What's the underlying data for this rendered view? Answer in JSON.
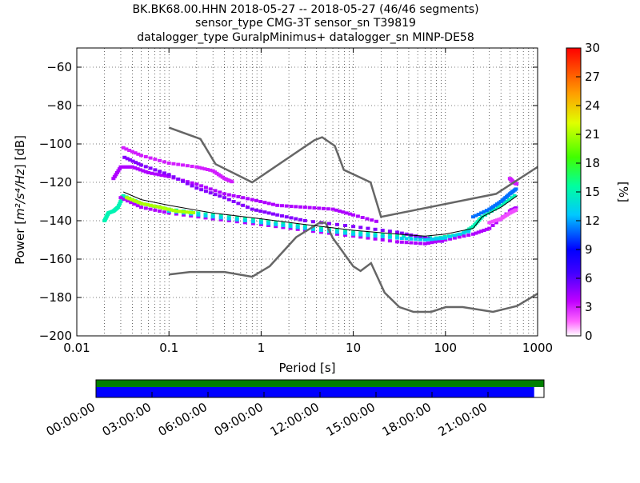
{
  "chart_data": {
    "type": "heatmap",
    "title_lines": [
      "BK.BK68.00.HHN   2018-05-27 -- 2018-05-27  (46/46 segments)",
      "sensor_type CMG-3T sensor_sn T39819",
      "datalogger_type GuralpMinimus+ datalogger_sn MINP-DE58"
    ],
    "xlabel": "Period [s]",
    "ylabel_prefix": "Power [",
    "ylabel_math": "m²/s⁴/Hz",
    "ylabel_suffix": "] [dB]",
    "x_scale": "log",
    "xlim": [
      0.01,
      1000
    ],
    "ylim": [
      -200,
      -50
    ],
    "x_ticks": [
      {
        "v": 0.01,
        "label": "0.01"
      },
      {
        "v": 0.1,
        "label": "0.1"
      },
      {
        "v": 1,
        "label": "1"
      },
      {
        "v": 10,
        "label": "10"
      },
      {
        "v": 100,
        "label": "100"
      },
      {
        "v": 1000,
        "label": "1000"
      }
    ],
    "y_ticks": [
      {
        "v": -60,
        "label": "−60"
      },
      {
        "v": -80,
        "label": "−80"
      },
      {
        "v": -100,
        "label": "−100"
      },
      {
        "v": -120,
        "label": "−120"
      },
      {
        "v": -140,
        "label": "−140"
      },
      {
        "v": -160,
        "label": "−160"
      },
      {
        "v": -180,
        "label": "−180"
      },
      {
        "v": -200,
        "label": "−200"
      }
    ],
    "grid": true,
    "colorbar": {
      "label": "[%]",
      "range": [
        0,
        30
      ],
      "ticks": [
        {
          "v": 0,
          "label": "0"
        },
        {
          "v": 3,
          "label": "3"
        },
        {
          "v": 6,
          "label": "6"
        },
        {
          "v": 9,
          "label": "9"
        },
        {
          "v": 12,
          "label": "12"
        },
        {
          "v": 15,
          "label": "15"
        },
        {
          "v": 18,
          "label": "18"
        },
        {
          "v": 21,
          "label": "21"
        },
        {
          "v": 24,
          "label": "24"
        },
        {
          "v": 27,
          "label": "27"
        },
        {
          "v": 30,
          "label": "30"
        }
      ]
    },
    "high_noise_model": [
      [
        0.1,
        -91.5
      ],
      [
        0.22,
        -97.4
      ],
      [
        0.32,
        -110.5
      ],
      [
        0.8,
        -120
      ],
      [
        3.8,
        -98
      ],
      [
        4.6,
        -96.5
      ],
      [
        6.3,
        -101
      ],
      [
        7.9,
        -113.5
      ],
      [
        15.4,
        -120
      ],
      [
        20,
        -138
      ],
      [
        354.8,
        -126
      ],
      [
        1000,
        -112
      ]
    ],
    "low_noise_model": [
      [
        0.1,
        -168
      ],
      [
        0.17,
        -166.7
      ],
      [
        0.4,
        -166.7
      ],
      [
        0.8,
        -169.2
      ],
      [
        1.24,
        -163.7
      ],
      [
        2.4,
        -148.6
      ],
      [
        4.3,
        -141.1
      ],
      [
        5,
        -141.1
      ],
      [
        6,
        -149
      ],
      [
        10,
        -163.8
      ],
      [
        12,
        -166.2
      ],
      [
        15.6,
        -162.1
      ],
      [
        21.9,
        -177.5
      ],
      [
        31.6,
        -185
      ],
      [
        45,
        -187.5
      ],
      [
        70,
        -187.5
      ],
      [
        101,
        -185
      ],
      [
        154,
        -185
      ],
      [
        328,
        -187.5
      ],
      [
        600,
        -184.4
      ],
      [
        1000,
        -178
      ]
    ],
    "mode_line": [
      [
        0.032,
        -125
      ],
      [
        0.05,
        -129
      ],
      [
        0.1,
        -132
      ],
      [
        0.3,
        -136
      ],
      [
        1,
        -139
      ],
      [
        3,
        -142
      ],
      [
        10,
        -145
      ],
      [
        30,
        -147
      ],
      [
        60,
        -148
      ],
      [
        100,
        -147
      ],
      [
        200,
        -144
      ],
      [
        250,
        -138
      ],
      [
        400,
        -133
      ],
      [
        600,
        -127
      ]
    ],
    "density_bands": [
      {
        "level": 15,
        "points": [
          [
            0.02,
            -140
          ],
          [
            0.022,
            -136
          ],
          [
            0.025,
            -135
          ],
          [
            0.028,
            -133
          ],
          [
            0.032,
            -127
          ],
          [
            0.05,
            -131
          ],
          [
            0.1,
            -134
          ],
          [
            0.3,
            -137
          ],
          [
            1,
            -140
          ],
          [
            3,
            -143
          ],
          [
            10,
            -146
          ],
          [
            30,
            -148
          ],
          [
            80,
            -149
          ],
          [
            150,
            -147
          ],
          [
            200,
            -143
          ],
          [
            250,
            -138
          ],
          [
            400,
            -132
          ],
          [
            600,
            -126
          ]
        ]
      },
      {
        "level": 3,
        "points": [
          [
            0.032,
            -102
          ],
          [
            0.05,
            -106
          ],
          [
            0.1,
            -110
          ],
          [
            0.2,
            -112
          ],
          [
            0.3,
            -114
          ],
          [
            0.4,
            -118
          ],
          [
            0.5,
            -120
          ]
        ]
      },
      {
        "level": 4,
        "points": [
          [
            0.025,
            -118
          ],
          [
            0.03,
            -112
          ],
          [
            0.04,
            -112
          ],
          [
            0.06,
            -115
          ],
          [
            0.1,
            -117
          ],
          [
            0.2,
            -121
          ],
          [
            0.4,
            -126
          ],
          [
            0.8,
            -129
          ],
          [
            1.5,
            -132
          ],
          [
            3,
            -133
          ],
          [
            6,
            -134
          ],
          [
            10,
            -137
          ],
          [
            20,
            -141
          ]
        ]
      },
      {
        "level": 5,
        "points": [
          [
            0.033,
            -107
          ],
          [
            0.05,
            -111
          ],
          [
            0.1,
            -116
          ],
          [
            0.2,
            -123
          ],
          [
            0.4,
            -128
          ],
          [
            0.8,
            -134
          ],
          [
            1.5,
            -137
          ],
          [
            3,
            -140
          ],
          [
            10,
            -143
          ],
          [
            30,
            -146
          ],
          [
            60,
            -149
          ],
          [
            100,
            -151
          ]
        ]
      },
      {
        "level": 4,
        "points": [
          [
            0.03,
            -128
          ],
          [
            0.05,
            -133
          ],
          [
            0.1,
            -136
          ],
          [
            0.3,
            -139
          ],
          [
            1,
            -142
          ],
          [
            3,
            -145
          ],
          [
            10,
            -148
          ],
          [
            30,
            -151
          ],
          [
            60,
            -152
          ],
          [
            100,
            -150
          ],
          [
            200,
            -147
          ],
          [
            300,
            -144
          ],
          [
            500,
            -135
          ],
          [
            600,
            -133
          ]
        ]
      },
      {
        "level": 13,
        "points": [
          [
            0.1,
            -135
          ],
          [
            0.3,
            -138
          ],
          [
            1,
            -141
          ],
          [
            3,
            -144
          ],
          [
            10,
            -147
          ],
          [
            30,
            -149
          ],
          [
            60,
            -150
          ],
          [
            100,
            -149
          ],
          [
            200,
            -145
          ]
        ]
      },
      {
        "level": 21,
        "points": [
          [
            0.035,
            -128
          ],
          [
            0.05,
            -131
          ],
          [
            0.08,
            -133
          ],
          [
            0.12,
            -135
          ],
          [
            0.2,
            -136
          ]
        ]
      },
      {
        "level": 11,
        "points": [
          [
            200,
            -138
          ],
          [
            300,
            -134
          ],
          [
            400,
            -130
          ],
          [
            500,
            -126
          ],
          [
            600,
            -123
          ]
        ]
      },
      {
        "level": 3,
        "points": [
          [
            500,
            -118
          ],
          [
            550,
            -120
          ],
          [
            600,
            -121
          ]
        ]
      },
      {
        "level": 2,
        "points": [
          [
            300,
            -141
          ],
          [
            400,
            -139
          ],
          [
            500,
            -136
          ],
          [
            600,
            -134
          ]
        ]
      }
    ],
    "time_axis": {
      "tick_labels": [
        "00:00:00",
        "03:00:00",
        "06:00:00",
        "09:00:00",
        "12:00:00",
        "15:00:00",
        "18:00:00",
        "21:00:00"
      ],
      "data_coverage_fraction": 1.0,
      "used_coverage_fraction": 0.978,
      "data_color": "#008000",
      "used_color": "#0000ff"
    },
    "line_color": "#666666",
    "mode_color": "#000000"
  }
}
